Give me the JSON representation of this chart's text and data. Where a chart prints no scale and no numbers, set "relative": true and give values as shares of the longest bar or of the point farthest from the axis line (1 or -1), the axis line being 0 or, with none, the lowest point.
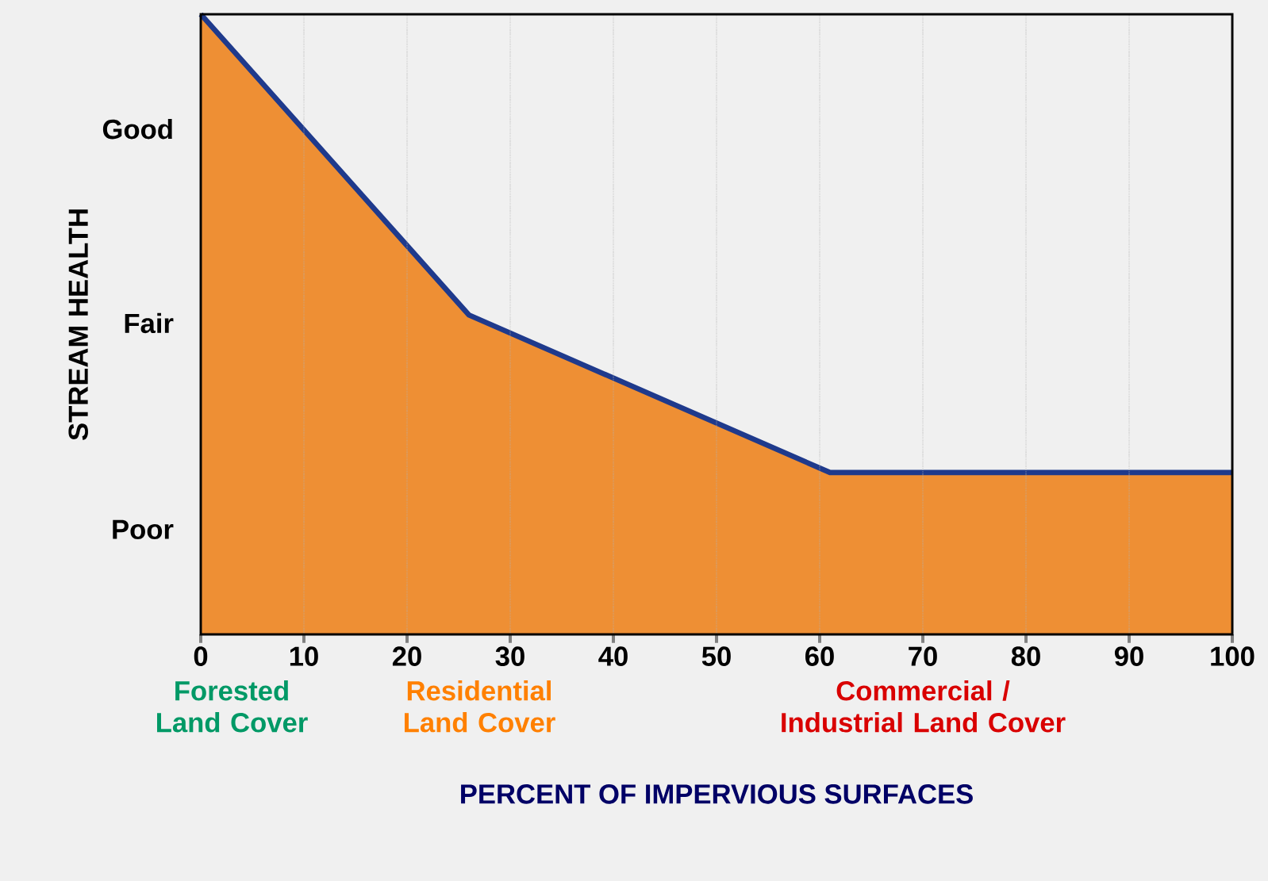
{
  "chart_data": {
    "type": "area",
    "relative": true,
    "xlabel": "PERCENT OF IMPERVIOUS SURFACES",
    "ylabel": "STREAM HEALTH",
    "x": [
      0,
      26,
      61,
      100
    ],
    "series": [
      {
        "color": "#ee8f34",
        "values": [
          1,
          0.515,
          0.261,
          0.261
        ]
      },
      {
        "type": "line",
        "color": "#1f3a8c",
        "values": [
          1,
          0.515,
          0.261,
          0.261
        ]
      }
    ],
    "xlim": [
      0,
      100
    ],
    "xticks": [
      0,
      10,
      20,
      30,
      40,
      50,
      60,
      70,
      80,
      90,
      100
    ],
    "grid": "x",
    "annotations": [
      "Good",
      "Fair",
      "Poor",
      "Forested Land Cover",
      "Residential Land Cover",
      "Commercial / Industrial Land Cover"
    ]
  }
}
